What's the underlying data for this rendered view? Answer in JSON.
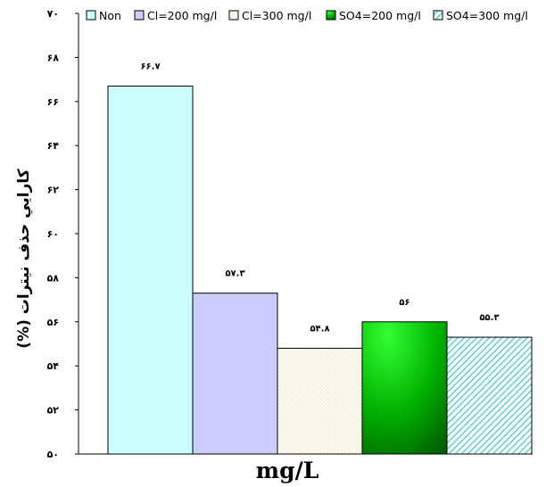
{
  "chart_data": {
    "type": "bar",
    "xlabel": "mg/L",
    "ylabel": "كارايي حذف نيترات (%)",
    "ylim": [
      50,
      70
    ],
    "y_ticks": [
      50,
      52,
      54,
      56,
      58,
      60,
      62,
      64,
      66,
      68,
      70
    ],
    "y_tick_labels": [
      "۵۰",
      "۵۲",
      "۵۴",
      "۵۶",
      "۵۸",
      "۶۰",
      "۶۲",
      "۶۴",
      "۶۶",
      "۶۸",
      "۷۰"
    ],
    "grid": false,
    "legend_position": "top",
    "series": [
      {
        "name": "Non",
        "value": 66.7,
        "label": "۶۶.۷",
        "color": "#ccffff",
        "pattern": "solid"
      },
      {
        "name": "Cl=200 mg/l",
        "value": 57.3,
        "label": "۵۷.۳",
        "color": "#ccccff",
        "pattern": "solid"
      },
      {
        "name": "Cl=300 mg/l",
        "value": 54.8,
        "label": "۵۴.۸",
        "color": "#fffdf0",
        "pattern": "dots"
      },
      {
        "name": "SO4=200 mg/l",
        "value": 56,
        "label": "۵۶",
        "color": "#00cc00",
        "pattern": "gradient"
      },
      {
        "name": "SO4=300 mg/l",
        "value": 55.3,
        "label": "۵۵.۳",
        "color": "#33cccc",
        "pattern": "diagonal"
      }
    ]
  }
}
